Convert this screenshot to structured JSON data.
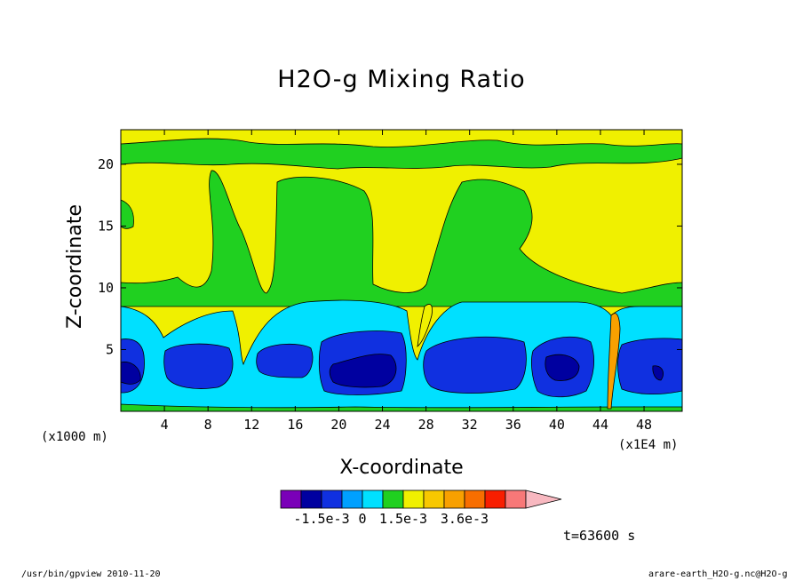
{
  "title": "H2O-g Mixing Ratio",
  "x_unit": "(x1000 m)",
  "x_scale_note": "(x1E4 m)",
  "footer": {
    "left": "/usr/bin/gpview  2010-11-20",
    "right": "arare-earth_H2O-g.nc@H2O-g"
  },
  "time_label": "t=63600 s",
  "colorbar": {
    "colors": [
      "#7a00b8",
      "#0000a0",
      "#1030e0",
      "#00a0ff",
      "#00e0ff",
      "#20d020",
      "#f0f000",
      "#f8c800",
      "#f8a000",
      "#f86e00",
      "#f81e00",
      "#f87878",
      "#f8b8c0"
    ],
    "labels": [
      "-1.5e-3",
      "0",
      "1.5e-3",
      "3.6e-3"
    ]
  },
  "chart_data": {
    "type": "heatmap",
    "subtype": "filled contour",
    "title": "H2O-g Mixing Ratio",
    "xlabel": "X-coordinate",
    "ylabel": "Z-coordinate",
    "x_ticks": [
      "4",
      "8",
      "12",
      "16",
      "20",
      "24",
      "28",
      "32",
      "36",
      "40",
      "44",
      "48"
    ],
    "y_ticks": [
      "5",
      "10",
      "15",
      "20"
    ],
    "xlim": [
      0,
      51.5
    ],
    "ylim": [
      0,
      22.8
    ],
    "legend": "bottom colorbar",
    "color_scale": {
      "colors": [
        "#7a00b8",
        "#0000a0",
        "#1030e0",
        "#00a0ff",
        "#00e0ff",
        "#20d020",
        "#f0f000",
        "#f8c800",
        "#f8a000",
        "#f86e00",
        "#f81e00",
        "#f87878",
        "#f8b8c0"
      ],
      "labels": [
        "-1.5e-3",
        "0",
        "1.5e-3",
        "3.6e-3"
      ]
    },
    "regions": [
      {
        "level": "cyan",
        "description": "moist boundary layer below z≈8.5",
        "z_range": [
          0,
          8.5
        ]
      },
      {
        "level": "blue",
        "description": "cells near z≈2-6 centered near x≈3,7,18,22,31,39,48",
        "z_range": [
          1.5,
          6
        ]
      },
      {
        "level": "green",
        "description": "band z≈8.5-11 and updraft columns",
        "z_range": [
          8.5,
          11
        ]
      },
      {
        "level": "yellow",
        "description": "upper dry regions z≈11-20",
        "z_range": [
          11,
          20
        ]
      },
      {
        "level": "orange",
        "description": "narrow plume near x≈44.5",
        "z_range": [
          0,
          8
        ]
      }
    ]
  }
}
